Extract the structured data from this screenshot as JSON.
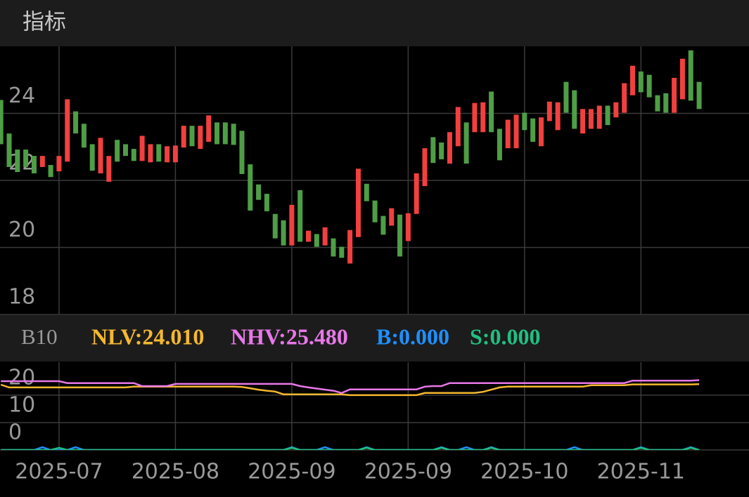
{
  "header": {
    "title": "指标"
  },
  "chart_data": [
    {
      "type": "candlestick",
      "open": [
        24.4,
        23.4,
        22.92,
        22.92,
        22.73,
        22.4,
        22.46,
        22.27,
        22.56,
        24.06,
        23.69,
        23.08,
        22.21,
        21.96,
        23.21,
        23.08,
        22.94,
        22.58,
        22.54,
        23.08,
        22.54,
        22.54,
        22.98,
        23.63,
        22.94,
        23.15,
        23.73,
        23.73,
        23.69,
        23.48,
        22.48,
        21.88,
        21.6,
        21.0,
        20.81,
        20.06,
        21.71,
        20.17,
        20.4,
        20.06,
        20.27,
        20.02,
        19.52,
        20.31,
        21.9,
        21.4,
        20.94,
        20.65,
        20.98,
        20.19,
        21.0,
        21.83,
        23.29,
        23.13,
        22.5,
        23.02,
        23.73,
        23.44,
        23.44,
        24.65,
        23.54,
        22.96,
        22.96,
        24.02,
        23.85,
        23.02,
        23.77,
        23.5,
        24.94,
        24.69,
        23.4,
        23.54,
        23.54,
        24.23,
        23.88,
        24.02,
        24.54,
        25.25,
        25.15,
        24.54,
        24.6,
        24.02,
        24.42,
        25.88,
        24.94
      ],
      "close": [
        23.08,
        22.4,
        22.25,
        22.4,
        22.21,
        22.73,
        22.1,
        22.73,
        24.42,
        23.4,
        22.98,
        22.29,
        23.27,
        22.73,
        22.56,
        22.73,
        22.58,
        23.33,
        23.08,
        22.56,
        23.02,
        23.04,
        23.63,
        23.02,
        23.63,
        23.94,
        23.08,
        23.08,
        23.06,
        22.19,
        21.1,
        21.42,
        21.08,
        20.27,
        20.06,
        21.27,
        20.17,
        20.5,
        20.02,
        20.6,
        19.73,
        19.69,
        20.52,
        22.35,
        21.38,
        20.75,
        20.38,
        21.17,
        19.73,
        21.02,
        22.21,
        22.96,
        22.52,
        22.63,
        23.44,
        24.19,
        22.5,
        24.31,
        24.33,
        23.44,
        22.6,
        23.81,
        23.96,
        23.5,
        23.15,
        23.88,
        24.35,
        24.33,
        24.02,
        23.54,
        24.13,
        24.13,
        24.23,
        23.65,
        24.33,
        24.9,
        25.42,
        24.63,
        24.48,
        24.06,
        24.02,
        25.06,
        25.63,
        24.38,
        24.13
      ],
      "up_color": "#f2403f",
      "down_color": "#4e9e45",
      "xlim": [
        -0.1,
        90
      ],
      "ylim": [
        18,
        26
      ],
      "yticks": [
        18,
        20,
        22,
        24
      ],
      "grid": true
    },
    {
      "type": "line",
      "indicator": "B10",
      "series": [
        {
          "name": "NLV:24.010",
          "color": "#f5b82e",
          "values": [
            23.8,
            22.8,
            22.8,
            22.8,
            22.8,
            22.8,
            22.8,
            22.8,
            22.8,
            22.8,
            22.8,
            22.8,
            22.8,
            22.8,
            22.8,
            22.8,
            23.1,
            23.1,
            23.1,
            23.1,
            23.1,
            23.1,
            23.1,
            23.1,
            23.1,
            23.1,
            23.1,
            23.1,
            23.1,
            23.0,
            22.5,
            22.0,
            21.6,
            21.3,
            20.3,
            20.3,
            20.3,
            20.3,
            20.3,
            20.3,
            20.3,
            20.3,
            20.0,
            20.0,
            20.0,
            20.0,
            20.0,
            20.0,
            20.0,
            20.0,
            20.0,
            20.8,
            20.8,
            20.8,
            20.8,
            20.8,
            20.8,
            20.8,
            21.2,
            22.0,
            22.8,
            23.1,
            23.1,
            23.1,
            23.1,
            23.1,
            23.1,
            23.1,
            23.1,
            23.1,
            23.1,
            23.6,
            23.6,
            23.6,
            23.6,
            23.6,
            23.9,
            23.9,
            23.9,
            23.9,
            23.9,
            23.9,
            23.9,
            23.9,
            24.01
          ]
        },
        {
          "name": "NHV:25.480",
          "color": "#e878e8",
          "values": [
            25.1,
            25.1,
            25.1,
            25.1,
            25.1,
            25.1,
            25.1,
            25.1,
            24.4,
            24.4,
            24.4,
            24.4,
            24.4,
            24.4,
            24.4,
            24.4,
            24.4,
            23.3,
            23.3,
            23.3,
            23.3,
            24.1,
            24.1,
            24.1,
            24.1,
            24.1,
            24.1,
            24.1,
            24.1,
            24.1,
            24.1,
            24.1,
            24.1,
            24.1,
            24.1,
            24.1,
            23.3,
            22.8,
            22.4,
            22.0,
            21.6,
            20.8,
            22.1,
            22.1,
            22.1,
            22.1,
            22.1,
            22.1,
            22.1,
            22.1,
            22.1,
            23.1,
            23.3,
            23.3,
            24.4,
            24.4,
            24.4,
            24.4,
            24.4,
            24.4,
            24.4,
            24.4,
            24.4,
            24.4,
            24.4,
            24.4,
            24.4,
            24.4,
            24.4,
            24.4,
            24.4,
            24.4,
            24.4,
            24.4,
            24.4,
            24.4,
            25.3,
            25.3,
            25.3,
            25.3,
            25.3,
            25.3,
            25.3,
            25.3,
            25.48
          ]
        },
        {
          "name": "B:0.000",
          "color": "#1e90ff",
          "values": [
            0,
            0,
            0,
            0,
            0,
            1,
            0,
            0,
            0,
            1,
            0,
            0,
            0,
            0,
            0,
            0,
            0,
            0,
            0,
            0,
            0,
            0,
            0,
            0,
            0,
            0,
            0,
            0,
            0,
            0,
            0,
            0,
            0,
            0,
            0,
            1,
            0,
            0,
            0,
            1,
            0,
            0,
            0,
            0,
            1,
            0,
            0,
            0,
            0,
            0,
            0,
            0,
            0,
            1,
            0,
            0,
            1,
            0,
            0,
            1,
            0,
            0,
            0,
            0,
            0,
            0,
            0,
            0,
            0,
            1,
            0,
            0,
            0,
            0,
            0,
            0,
            0,
            1,
            0,
            0,
            0,
            0,
            0,
            1,
            0
          ]
        },
        {
          "name": "S:0.000",
          "color": "#20c080",
          "values": [
            0,
            0,
            0,
            0,
            0,
            0,
            0,
            0.8,
            0,
            0,
            0,
            0,
            0,
            0,
            0,
            0,
            0,
            0,
            0,
            0,
            0,
            0,
            0,
            0,
            0,
            0,
            0,
            0,
            0,
            0,
            0,
            0,
            0,
            0,
            0,
            0.8,
            0,
            0,
            0,
            0,
            0,
            0,
            0,
            0,
            0.8,
            0,
            0,
            0,
            0,
            0,
            0,
            0,
            0,
            0.8,
            0,
            0,
            0,
            0,
            0,
            0.8,
            0,
            0,
            0,
            0,
            0,
            0,
            0,
            0,
            0,
            0,
            0,
            0,
            0,
            0,
            0,
            0,
            0,
            0.8,
            0,
            0,
            0,
            0,
            0,
            0.8,
            0
          ]
        }
      ],
      "xlim": [
        -0.1,
        90
      ],
      "xticks": [
        {
          "value": 7,
          "label": "2025-07"
        },
        {
          "value": 21,
          "label": "2025-08"
        },
        {
          "value": 35,
          "label": "2025-09"
        },
        {
          "value": 49,
          "label": "2025-09"
        },
        {
          "value": 63,
          "label": "2025-10"
        },
        {
          "value": 77,
          "label": "2025-11"
        }
      ],
      "ylim": [
        0,
        32
      ],
      "yticks": [
        0,
        10,
        20
      ],
      "grid": true
    }
  ]
}
